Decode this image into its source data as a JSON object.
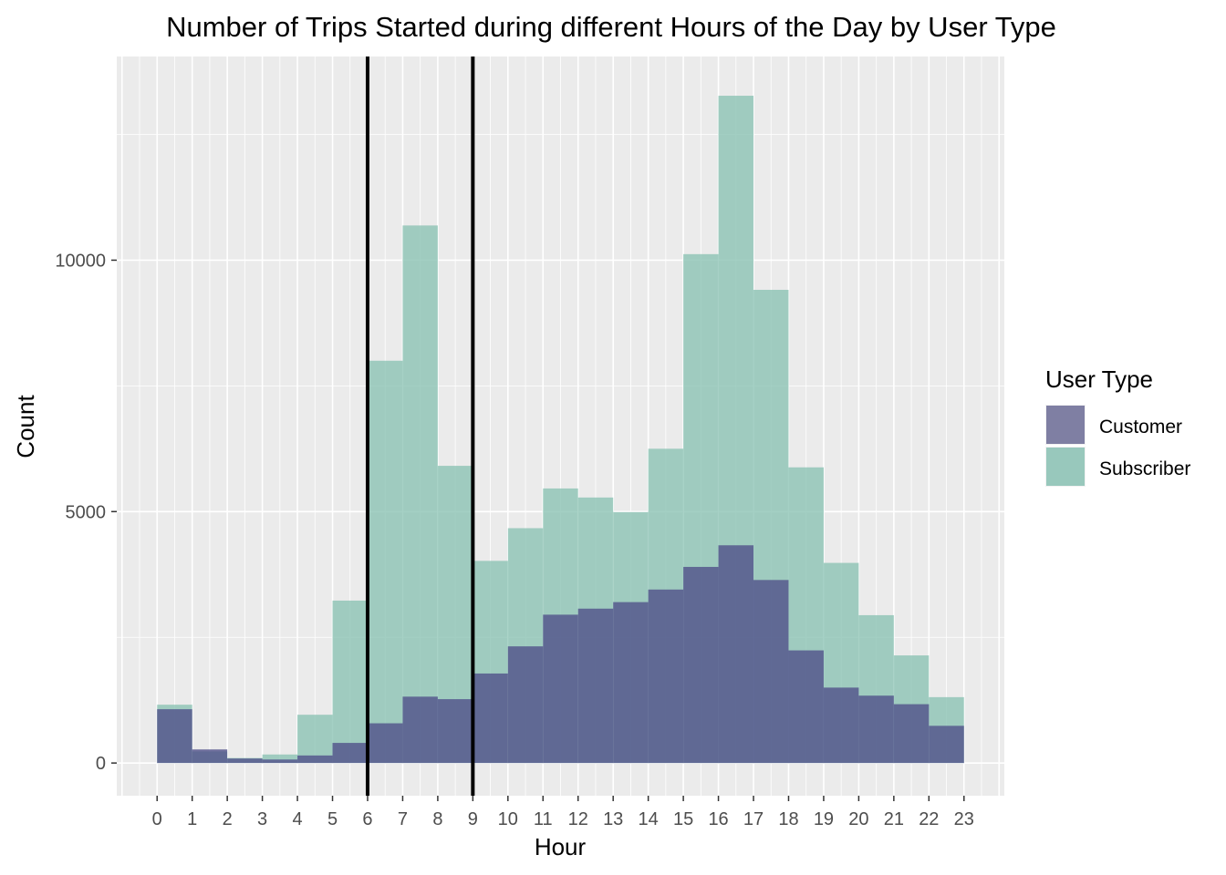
{
  "chart_data": {
    "type": "histogram",
    "title": "Number of Trips Started during different Hours of the Day by User Type",
    "xlabel": "Hour",
    "ylabel": "Count",
    "x_ticks": [
      "0",
      "1",
      "2",
      "3",
      "4",
      "5",
      "6",
      "7",
      "8",
      "9",
      "10",
      "11",
      "12",
      "13",
      "14",
      "15",
      "16",
      "17",
      "18",
      "19",
      "20",
      "21",
      "22",
      "23"
    ],
    "y_ticks": [
      "0",
      "5000",
      "10000"
    ],
    "y_tick_values": [
      0,
      5000,
      10000
    ],
    "xlim": [
      -1.15,
      24.15
    ],
    "ylim": [
      -650,
      14050
    ],
    "grid": true,
    "position": "identity (overlaid)",
    "vlines": [
      6,
      9
    ],
    "legend": {
      "title": "User Type",
      "position": "right",
      "entries": [
        {
          "label": "Customer",
          "color": "#7f7fa3"
        },
        {
          "label": "Subscriber",
          "color": "#98c8bc"
        }
      ]
    },
    "bin_edges": [
      0,
      1,
      2,
      3,
      4,
      5,
      6,
      7,
      8,
      9,
      10,
      11,
      12,
      13,
      14,
      15,
      16,
      17,
      18,
      19,
      20,
      21,
      22,
      23
    ],
    "series": [
      {
        "name": "Customer",
        "color": "#50508a",
        "values": [
          1070,
          270,
          90,
          70,
          150,
          400,
          790,
          1320,
          1270,
          1780,
          2320,
          2950,
          3070,
          3200,
          3450,
          3900,
          4330,
          3640,
          2240,
          1500,
          1340,
          1170,
          740
        ]
      },
      {
        "name": "Subscriber",
        "color": "#8cc3b4",
        "values": [
          1160,
          230,
          100,
          170,
          960,
          3230,
          8000,
          10690,
          5910,
          4020,
          4670,
          5460,
          5280,
          4990,
          6250,
          10120,
          13270,
          9410,
          5880,
          3980,
          2940,
          2140,
          1310
        ]
      }
    ],
    "overlap_color": "#749fa2"
  }
}
